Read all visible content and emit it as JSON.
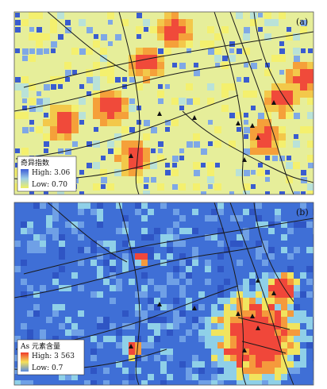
{
  "panels": [
    {
      "tag": "(a)",
      "legend": {
        "title": "奇异指数",
        "high": "High: 3.06",
        "low": "Low: 0.70"
      }
    },
    {
      "tag": "(b)",
      "legend": {
        "title": "As 元素含量",
        "high": "High: 3 563",
        "low": "Low: 0.7"
      }
    }
  ]
}
